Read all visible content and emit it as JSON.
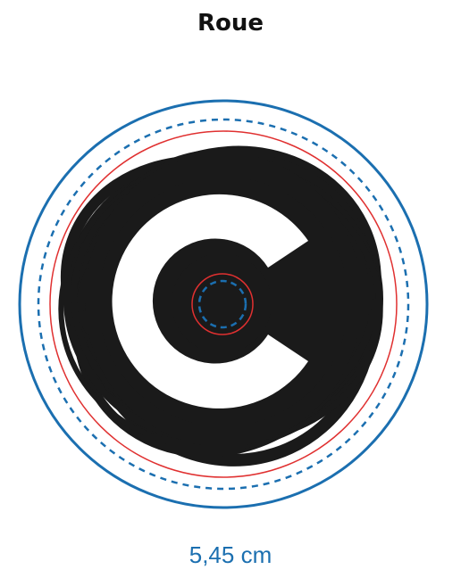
{
  "title": "Roue",
  "dimension_label": "5,45 cm",
  "colors": {
    "cut_line": "#1b6fb0",
    "safety_line": "#1b6fb0",
    "bleed_line": "#e03030",
    "artwork": "#1a1a1a",
    "background": "#ffffff"
  },
  "icons": [
    "wheel-artwork",
    "letter-c-logo",
    "scribble-ring"
  ]
}
